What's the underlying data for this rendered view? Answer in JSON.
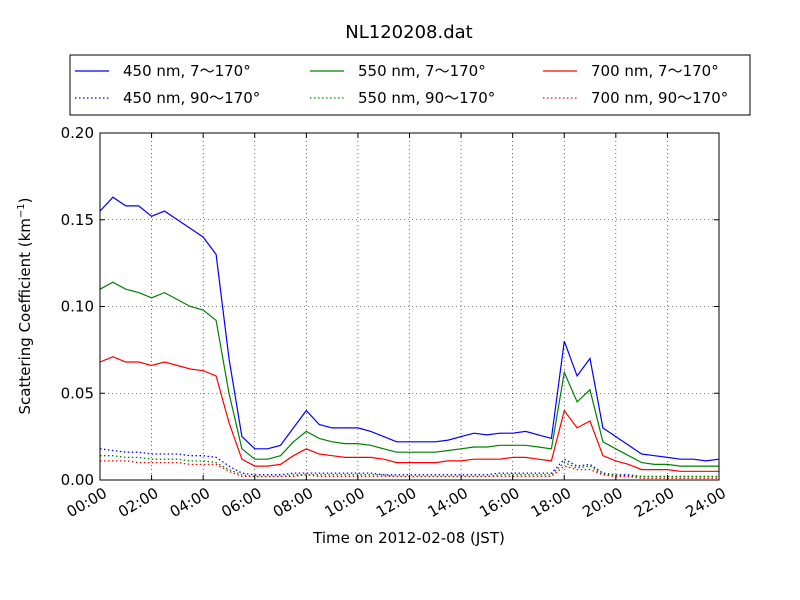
{
  "chart_data": {
    "type": "line",
    "title": "NL120208.dat",
    "xlabel": "Time on 2012-02-08 (JST)",
    "ylabel": "Scattering Coefficient (km",
    "ylabel_sup": "−1",
    "ylabel_suffix": ")",
    "xlim": [
      "00:00",
      "24:00"
    ],
    "ylim": [
      0,
      0.2
    ],
    "x_ticks": [
      "00:00",
      "02:00",
      "04:00",
      "06:00",
      "08:00",
      "10:00",
      "12:00",
      "14:00",
      "16:00",
      "18:00",
      "20:00",
      "22:00",
      "24:00"
    ],
    "y_ticks": [
      "0.00",
      "0.05",
      "0.10",
      "0.15",
      "0.20"
    ],
    "grid": true,
    "legend_position": "above plot",
    "x": [
      "00:00",
      "00:30",
      "01:00",
      "01:30",
      "02:00",
      "02:30",
      "03:00",
      "03:30",
      "04:00",
      "04:30",
      "05:00",
      "05:30",
      "06:00",
      "06:30",
      "07:00",
      "07:30",
      "08:00",
      "08:30",
      "09:00",
      "09:30",
      "10:00",
      "10:30",
      "11:00",
      "11:30",
      "12:00",
      "12:30",
      "13:00",
      "13:30",
      "14:00",
      "14:30",
      "15:00",
      "15:30",
      "16:00",
      "16:30",
      "17:00",
      "17:30",
      "18:00",
      "18:30",
      "19:00",
      "19:30",
      "20:00",
      "20:30",
      "21:00",
      "21:30",
      "22:00",
      "22:30",
      "23:00",
      "23:30",
      "24:00"
    ],
    "series": [
      {
        "name": "450 nm, 7～170°",
        "color": "#0000ff",
        "style": "solid",
        "values": [
          0.155,
          0.163,
          0.158,
          0.158,
          0.152,
          0.155,
          0.15,
          0.145,
          0.14,
          0.13,
          0.07,
          0.025,
          0.018,
          0.018,
          0.02,
          0.03,
          0.04,
          0.032,
          0.03,
          0.03,
          0.03,
          0.028,
          0.025,
          0.022,
          0.022,
          0.022,
          0.022,
          0.023,
          0.025,
          0.027,
          0.026,
          0.027,
          0.027,
          0.028,
          0.026,
          0.024,
          0.08,
          0.06,
          0.07,
          0.03,
          0.025,
          0.02,
          0.015,
          0.014,
          0.013,
          0.012,
          0.012,
          0.011,
          0.012
        ]
      },
      {
        "name": "450 nm, 90～170°",
        "color": "#0000ff",
        "style": "dotted",
        "values": [
          0.018,
          0.017,
          0.016,
          0.016,
          0.015,
          0.015,
          0.015,
          0.014,
          0.014,
          0.013,
          0.008,
          0.004,
          0.003,
          0.003,
          0.003,
          0.004,
          0.004,
          0.004,
          0.004,
          0.004,
          0.004,
          0.004,
          0.003,
          0.003,
          0.003,
          0.003,
          0.003,
          0.003,
          0.003,
          0.003,
          0.003,
          0.004,
          0.004,
          0.004,
          0.004,
          0.004,
          0.012,
          0.008,
          0.009,
          0.004,
          0.003,
          0.003,
          0.002,
          0.002,
          0.002,
          0.002,
          0.002,
          0.002,
          0.002
        ]
      },
      {
        "name": "550 nm, 7～170°",
        "color": "#008000",
        "style": "solid",
        "values": [
          0.11,
          0.114,
          0.11,
          0.108,
          0.105,
          0.108,
          0.104,
          0.1,
          0.098,
          0.092,
          0.05,
          0.018,
          0.012,
          0.012,
          0.014,
          0.022,
          0.028,
          0.024,
          0.022,
          0.021,
          0.021,
          0.02,
          0.018,
          0.016,
          0.016,
          0.016,
          0.016,
          0.017,
          0.018,
          0.019,
          0.019,
          0.02,
          0.02,
          0.02,
          0.019,
          0.018,
          0.062,
          0.045,
          0.052,
          0.022,
          0.018,
          0.014,
          0.01,
          0.009,
          0.009,
          0.008,
          0.008,
          0.008,
          0.008
        ]
      },
      {
        "name": "550 nm, 90～170°",
        "color": "#008000",
        "style": "dotted",
        "values": [
          0.014,
          0.014,
          0.013,
          0.013,
          0.012,
          0.012,
          0.012,
          0.011,
          0.011,
          0.01,
          0.006,
          0.003,
          0.002,
          0.002,
          0.002,
          0.003,
          0.003,
          0.003,
          0.003,
          0.003,
          0.003,
          0.003,
          0.003,
          0.002,
          0.002,
          0.002,
          0.002,
          0.002,
          0.002,
          0.002,
          0.002,
          0.003,
          0.003,
          0.003,
          0.003,
          0.003,
          0.01,
          0.007,
          0.008,
          0.003,
          0.003,
          0.002,
          0.002,
          0.002,
          0.002,
          0.002,
          0.002,
          0.002,
          0.002
        ]
      },
      {
        "name": "700 nm, 7～170°",
        "color": "#ff0000",
        "style": "solid",
        "values": [
          0.068,
          0.071,
          0.068,
          0.068,
          0.066,
          0.068,
          0.066,
          0.064,
          0.063,
          0.06,
          0.033,
          0.012,
          0.008,
          0.008,
          0.009,
          0.014,
          0.018,
          0.015,
          0.014,
          0.013,
          0.013,
          0.013,
          0.012,
          0.01,
          0.01,
          0.01,
          0.01,
          0.011,
          0.011,
          0.012,
          0.012,
          0.012,
          0.013,
          0.013,
          0.012,
          0.011,
          0.04,
          0.03,
          0.034,
          0.014,
          0.011,
          0.009,
          0.006,
          0.006,
          0.006,
          0.005,
          0.005,
          0.005,
          0.005
        ]
      },
      {
        "name": "700 nm, 90～170°",
        "color": "#ff0000",
        "style": "dotted",
        "values": [
          0.011,
          0.011,
          0.011,
          0.01,
          0.01,
          0.01,
          0.01,
          0.009,
          0.009,
          0.009,
          0.005,
          0.002,
          0.002,
          0.002,
          0.002,
          0.002,
          0.003,
          0.002,
          0.002,
          0.002,
          0.002,
          0.002,
          0.002,
          0.002,
          0.002,
          0.002,
          0.002,
          0.002,
          0.002,
          0.002,
          0.002,
          0.002,
          0.002,
          0.002,
          0.002,
          0.002,
          0.008,
          0.006,
          0.006,
          0.003,
          0.002,
          0.002,
          0.001,
          0.001,
          0.001,
          0.001,
          0.001,
          0.001,
          0.001
        ]
      }
    ]
  }
}
